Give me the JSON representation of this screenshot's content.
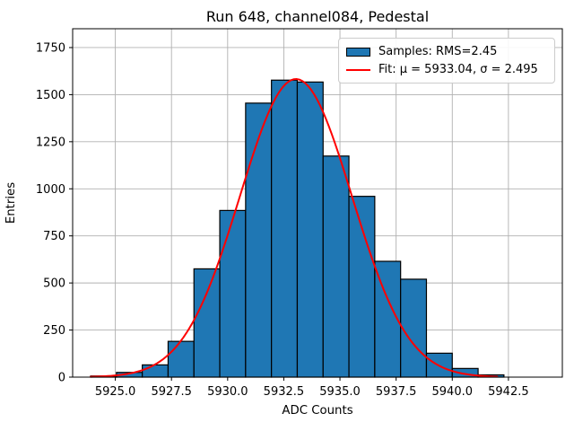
{
  "figure": {
    "background": "#ffffff"
  },
  "chart_data": {
    "type": "bar",
    "subtype": "histogram",
    "title": "Run 648, channel084, Pedestal",
    "xlabel": "ADC Counts",
    "ylabel": "Entries",
    "xlim": [
      5923.1,
      5944.9
    ],
    "ylim": [
      0,
      1850
    ],
    "grid": true,
    "grid_color": "#b0b0b0",
    "axes_color": "#000000",
    "xticks": [
      "5925.0",
      "5927.5",
      "5930.0",
      "5932.5",
      "5935.0",
      "5937.5",
      "5940.0",
      "5942.5"
    ],
    "yticks": [
      "0",
      "250",
      "500",
      "750",
      "1000",
      "1250",
      "1500",
      "1750"
    ],
    "bin_edges": [
      5923.9,
      5925.05,
      5926.2,
      5927.35,
      5928.5,
      5929.65,
      5930.8,
      5931.95,
      5933.1,
      5934.25,
      5935.4,
      5936.55,
      5937.7,
      5938.85,
      5940.0,
      5941.15,
      5942.3
    ],
    "counts": [
      6,
      25,
      65,
      190,
      575,
      885,
      1455,
      1577,
      1567,
      1174,
      960,
      615,
      520,
      127,
      46,
      12
    ],
    "bar_color": "#1f77b4",
    "bar_edge_color": "#000000",
    "fit_curve": {
      "shape": "gaussian",
      "mu": 5933.04,
      "sigma": 2.495,
      "amplitude": 1583,
      "color": "#ff0000",
      "x_start": 5923.9,
      "x_end": 5942.0
    },
    "legend": {
      "position": "upper-right",
      "entries": [
        {
          "swatch": "patch",
          "color": "#1f77b4",
          "label": "Samples: RMS=2.45"
        },
        {
          "swatch": "line",
          "color": "#ff0000",
          "label": "Fit: μ = 5933.04, σ = 2.495"
        }
      ]
    }
  }
}
